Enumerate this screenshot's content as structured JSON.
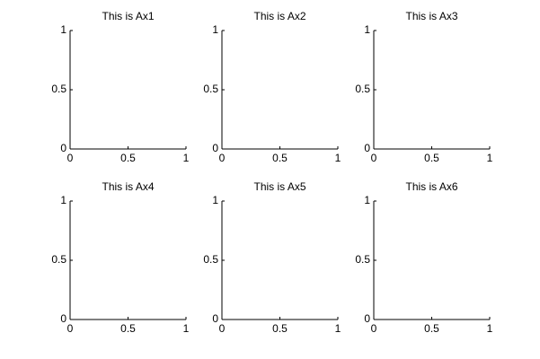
{
  "chart_data": [
    {
      "type": "line",
      "title": "This is Ax1",
      "xlim": [
        0,
        1
      ],
      "ylim": [
        0,
        1
      ],
      "xticks": [
        0,
        0.5,
        1
      ],
      "yticks": [
        0,
        0.5,
        1
      ]
    },
    {
      "type": "line",
      "title": "This is Ax2",
      "xlim": [
        0,
        1
      ],
      "ylim": [
        0,
        1
      ],
      "xticks": [
        0,
        0.5,
        1
      ],
      "yticks": [
        0,
        0.5,
        1
      ]
    },
    {
      "type": "line",
      "title": "This is Ax3",
      "xlim": [
        0,
        1
      ],
      "ylim": [
        0,
        1
      ],
      "xticks": [
        0,
        0.5,
        1
      ],
      "yticks": [
        0,
        0.5,
        1
      ]
    },
    {
      "type": "line",
      "title": "This is Ax4",
      "xlim": [
        0,
        1
      ],
      "ylim": [
        0,
        1
      ],
      "xticks": [
        0,
        0.5,
        1
      ],
      "yticks": [
        0,
        0.5,
        1
      ]
    },
    {
      "type": "line",
      "title": "This is Ax5",
      "xlim": [
        0,
        1
      ],
      "ylim": [
        0,
        1
      ],
      "xticks": [
        0,
        0.5,
        1
      ],
      "yticks": [
        0,
        0.5,
        1
      ]
    },
    {
      "type": "line",
      "title": "This is Ax6",
      "xlim": [
        0,
        1
      ],
      "ylim": [
        0,
        1
      ],
      "xticks": [
        0,
        0.5,
        1
      ],
      "yticks": [
        0,
        0.5,
        1
      ]
    }
  ]
}
